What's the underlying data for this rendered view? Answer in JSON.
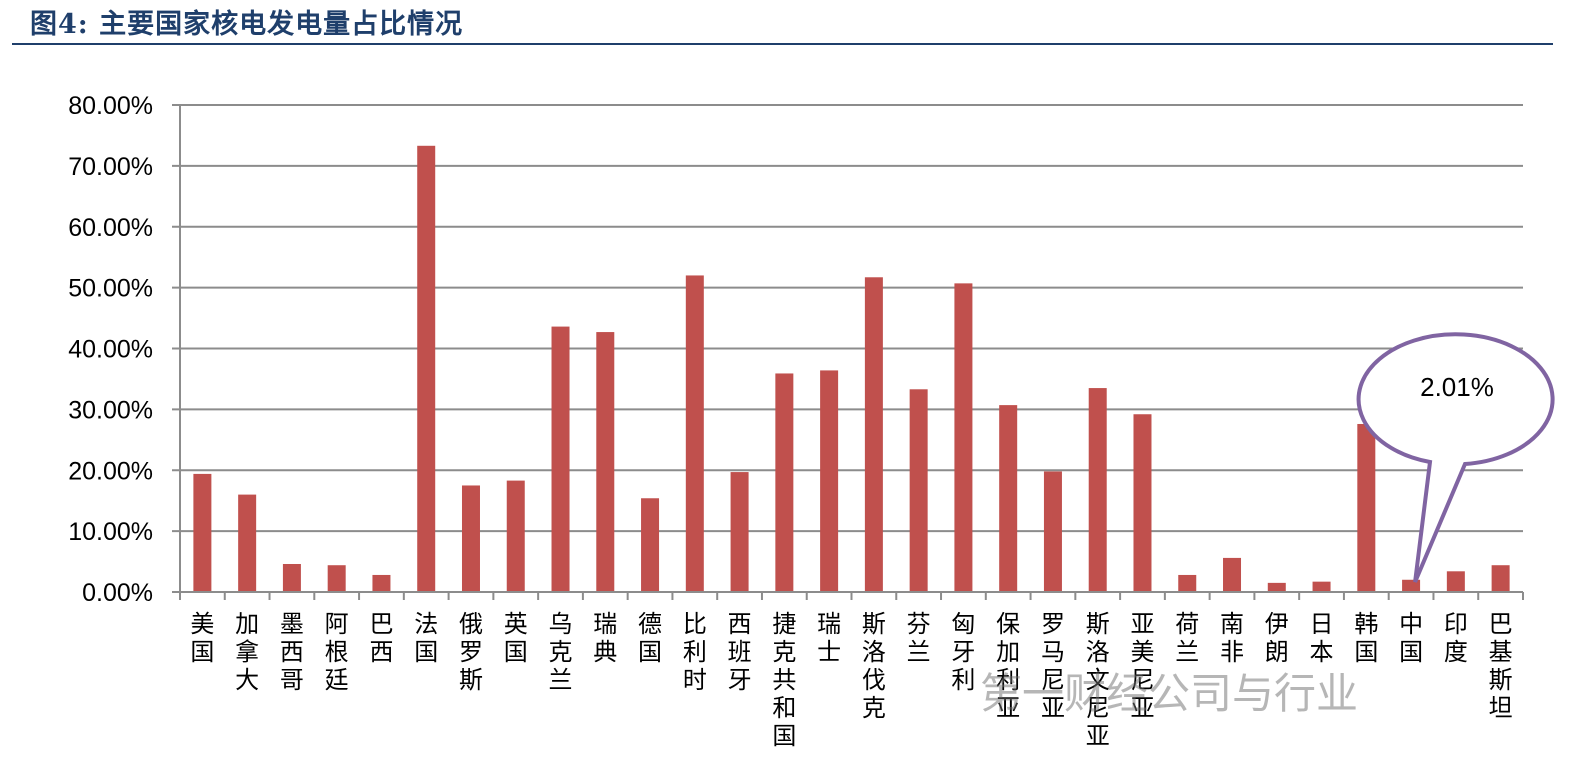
{
  "header": {
    "title": "图4:  主要国家核电发电量占比情况"
  },
  "watermark": "第一财经公司与行业",
  "colors": {
    "bar": "#c0504d",
    "grid": "#8c8c8c",
    "callout_border": "#8064a2",
    "title": "#1f3f6b"
  },
  "callout": {
    "text": "2.01%",
    "target_category": "中国"
  },
  "chart_data": {
    "type": "bar",
    "title": "",
    "xlabel": "",
    "ylabel": "",
    "ylim": [
      0,
      0.8
    ],
    "grid": true,
    "legend": "none",
    "yticks": [
      "0.00%",
      "10.00%",
      "20.00%",
      "30.00%",
      "40.00%",
      "50.00%",
      "60.00%",
      "70.00%",
      "80.00%"
    ],
    "categories": [
      "美国",
      "加拿大",
      "墨西哥",
      "阿根廷",
      "巴西",
      "法国",
      "俄罗斯",
      "英国",
      "乌克兰",
      "瑞典",
      "德国",
      "比利时",
      "西班牙",
      "捷克共和国",
      "瑞士",
      "斯洛伐克",
      "芬兰",
      "匈牙利",
      "保加利亚",
      "罗马尼亚",
      "斯洛文尼亚",
      "亚美尼亚",
      "荷兰",
      "南非",
      "伊朗",
      "日本",
      "韩国",
      "中国",
      "印度",
      "巴基斯坦"
    ],
    "values": [
      0.194,
      0.16,
      0.046,
      0.044,
      0.028,
      0.733,
      0.175,
      0.183,
      0.436,
      0.427,
      0.154,
      0.52,
      0.197,
      0.359,
      0.364,
      0.517,
      0.333,
      0.507,
      0.307,
      0.198,
      0.335,
      0.292,
      0.028,
      0.056,
      0.015,
      0.017,
      0.276,
      0.0201,
      0.034,
      0.044
    ]
  }
}
